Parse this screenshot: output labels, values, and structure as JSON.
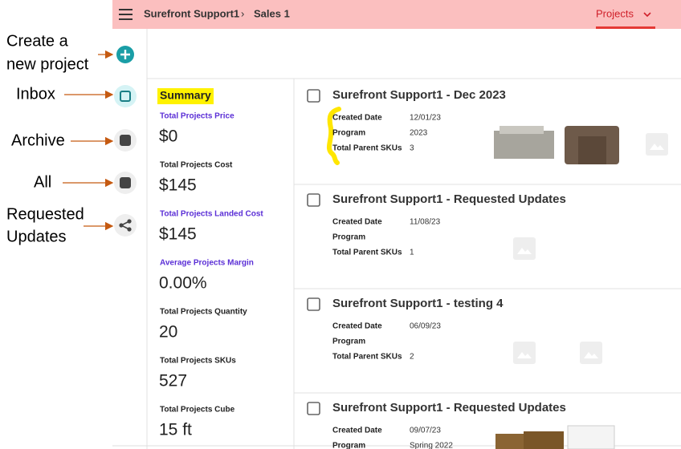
{
  "header": {
    "breadcrumb": [
      "Surefront Support1",
      "Sales 1"
    ],
    "nav": "Projects"
  },
  "annotations": [
    {
      "lines": [
        "Create a",
        "new project"
      ]
    },
    {
      "lines": [
        "Inbox"
      ]
    },
    {
      "lines": [
        "Archive"
      ]
    },
    {
      "lines": [
        "All"
      ]
    },
    {
      "lines": [
        "Requested",
        "Updates"
      ]
    }
  ],
  "summary": {
    "title": "Summary",
    "items": [
      {
        "label": "Total Projects Price",
        "value": "$0"
      },
      {
        "label": "Total Projects Cost",
        "value": "$145"
      },
      {
        "label": "Total Projects Landed Cost",
        "value": "$145"
      },
      {
        "label": "Average Projects Margin",
        "value": "0.00%"
      },
      {
        "label": "Total Projects Quantity",
        "value": "20"
      },
      {
        "label": "Total Projects SKUs",
        "value": "527"
      },
      {
        "label": "Total Projects Cube",
        "value": "15 ft"
      }
    ]
  },
  "projects": [
    {
      "title": "Surefront Support1 - Dec 2023",
      "fields": [
        {
          "label": "Created Date",
          "value": "12/01/23"
        },
        {
          "label": "Program",
          "value": "2023"
        },
        {
          "label": "Total Parent SKUs",
          "value": "3"
        }
      ]
    },
    {
      "title": "Surefront Support1 - Requested Updates",
      "fields": [
        {
          "label": "Created Date",
          "value": "11/08/23"
        },
        {
          "label": "Program"
        },
        {
          "label": "Total Parent SKUs",
          "value": "1"
        }
      ]
    },
    {
      "title": "Surefront Support1 - testing 4",
      "fields": [
        {
          "label": "Created Date",
          "value": "06/09/23"
        },
        {
          "label": "Program"
        },
        {
          "label": "Total Parent SKUs",
          "value": "2"
        }
      ]
    },
    {
      "title": "Surefront Support1 - Requested Updates",
      "fields": [
        {
          "label": "Created Date",
          "value": "09/07/23"
        },
        {
          "label": "Program",
          "value": "Spring 2022"
        }
      ]
    }
  ]
}
